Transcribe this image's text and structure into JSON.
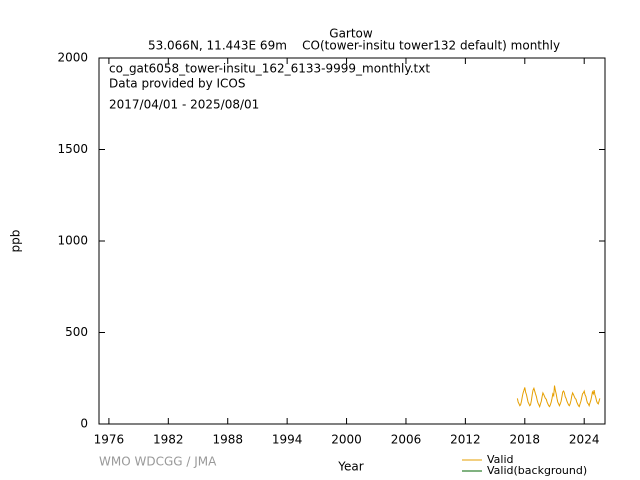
{
  "chart_data": {
    "type": "line",
    "title": "Gartow",
    "subtitle": "53.066N, 11.443E 69m    CO(tower-insitu tower132 default) monthly",
    "annotations": [
      "co_gat6058_tower-insitu_162_6133-9999_monthly.txt",
      "Data provided by ICOS",
      "2017/04/01 - 2025/08/01"
    ],
    "watermark": "WMO WDCGG / JMA",
    "xlabel": "Year",
    "ylabel": "ppb",
    "xlim": [
      1975,
      2026.1
    ],
    "xticks": [
      1976,
      1982,
      1988,
      1994,
      2000,
      2006,
      2012,
      2018,
      2024
    ],
    "ylim": [
      0,
      2000
    ],
    "yticks": [
      0,
      500,
      1000,
      1500,
      2000
    ],
    "series": [
      {
        "name": "Valid",
        "color": "#e69f00",
        "x": [
          2017.25,
          2017.33,
          2017.42,
          2017.5,
          2017.58,
          2017.67,
          2017.75,
          2017.83,
          2017.92,
          2018,
          2018.08,
          2018.17,
          2018.25,
          2018.33,
          2018.42,
          2018.5,
          2018.58,
          2018.67,
          2018.75,
          2018.83,
          2018.92,
          2019,
          2019.08,
          2019.17,
          2019.25,
          2019.33,
          2019.42,
          2019.5,
          2019.58,
          2019.67,
          2019.75,
          2019.83,
          2019.92,
          2020,
          2020.08,
          2020.17,
          2020.25,
          2020.33,
          2020.42,
          2020.5,
          2020.58,
          2020.67,
          2020.75,
          2020.83,
          2020.92,
          2021,
          2021.08,
          2021.17,
          2021.25,
          2021.33,
          2021.42,
          2021.5,
          2021.58,
          2021.67,
          2021.75,
          2021.83,
          2021.92,
          2022,
          2022.08,
          2022.17,
          2022.25,
          2022.33,
          2022.42,
          2022.5,
          2022.58,
          2022.67,
          2022.75,
          2022.83,
          2022.92,
          2023,
          2023.08,
          2023.17,
          2023.25,
          2023.33,
          2023.42,
          2023.5,
          2023.58,
          2023.67,
          2023.75,
          2023.83,
          2023.92,
          2024,
          2024.08,
          2024.17,
          2024.25,
          2024.33,
          2024.42,
          2024.5,
          2024.58,
          2024.67,
          2024.75,
          2024.83,
          2024.92,
          2025,
          2025.08,
          2025.17,
          2025.25,
          2025.33,
          2025.42,
          2025.5,
          2025.58
        ],
        "values": [
          140,
          120,
          110,
          100,
          105,
          125,
          150,
          170,
          185,
          200,
          175,
          160,
          140,
          120,
          110,
          100,
          105,
          130,
          160,
          185,
          195,
          180,
          165,
          150,
          130,
          115,
          105,
          95,
          110,
          125,
          150,
          170,
          160,
          150,
          140,
          135,
          120,
          110,
          100,
          95,
          105,
          120,
          140,
          165,
          155,
          210,
          185,
          165,
          140,
          120,
          110,
          100,
          110,
          125,
          150,
          175,
          180,
          170,
          150,
          140,
          125,
          115,
          105,
          100,
          110,
          130,
          155,
          170,
          160,
          150,
          140,
          135,
          120,
          110,
          100,
          95,
          110,
          125,
          145,
          165,
          170,
          180,
          160,
          150,
          130,
          115,
          110,
          100,
          115,
          130,
          150,
          175,
          165,
          185,
          160,
          145,
          125,
          115,
          110,
          125,
          140
        ]
      },
      {
        "name": "Valid(background)",
        "color": "#006400",
        "x": [],
        "values": []
      }
    ]
  }
}
